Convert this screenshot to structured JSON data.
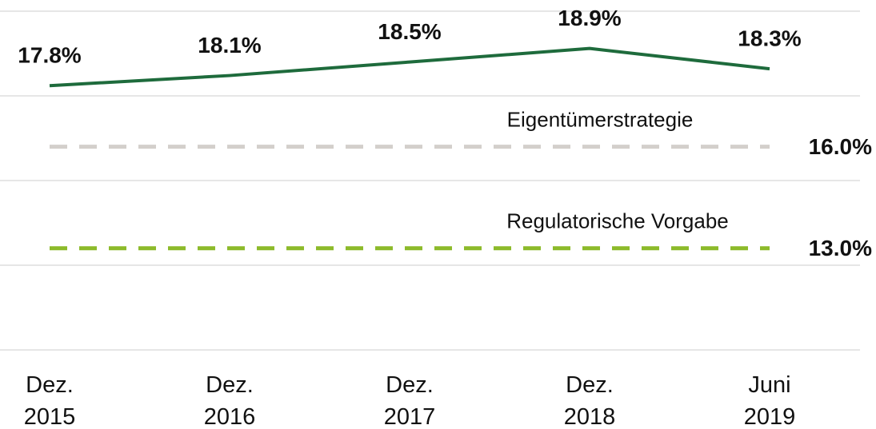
{
  "chart_data": {
    "type": "line",
    "categories": [
      "Dez. 2015",
      "Dez. 2016",
      "Dez. 2017",
      "Dez. 2018",
      "Juni 2019"
    ],
    "series": [
      {
        "color": "#1e6b3c",
        "values": [
          17.8,
          18.1,
          18.5,
          18.9,
          18.3
        ],
        "value_labels": [
          "17.8%",
          "18.1%",
          "18.5%",
          "18.9%",
          "18.3%"
        ]
      }
    ],
    "reference_lines": [
      {
        "name": "Eigentümerstrategie",
        "value": 16.0,
        "value_label": "16.0%",
        "color": "#d3cfcb",
        "dashed": true
      },
      {
        "name": "Regulatorische Vorgabe",
        "value": 13.0,
        "value_label": "13.0%",
        "color": "#8cba2a",
        "dashed": true
      }
    ],
    "ylim": [
      10,
      20
    ],
    "yticks": [
      10,
      12.5,
      15,
      17.5,
      20
    ],
    "grid": true
  }
}
